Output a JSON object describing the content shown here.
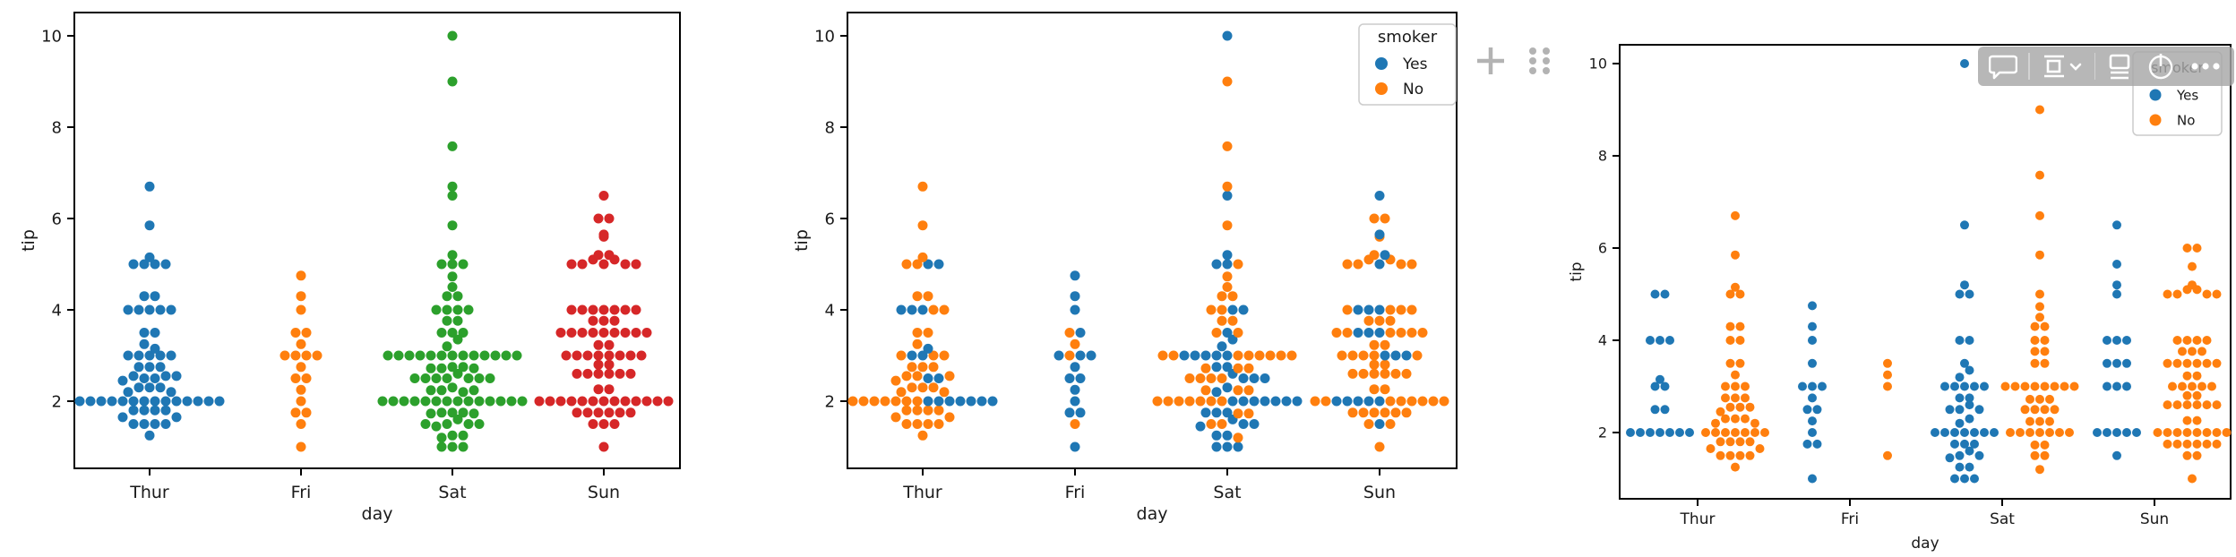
{
  "page": {
    "background": "#ffffff",
    "text_color": "#1a1a1a",
    "spine_color": "#000000"
  },
  "notebook_ui": {
    "add_cell_icon": "plus-icon",
    "drag_handle_icon": "drag-dots-icon",
    "cell_toolbar_icons": [
      "comment-icon",
      "output-presentation-icon",
      "chevron-down-icon",
      "insert-output-below-icon",
      "power-icon",
      "more-options-icon"
    ],
    "toolbar_bg": "#a7a7a7",
    "control_icon_color": "#b3b3b3",
    "toolbar_icon_color": "#ffffff"
  },
  "chart_data": {
    "type": "swarm",
    "dataset": {
      "columns": [
        "day",
        "tip",
        "smoker"
      ],
      "days": [
        "Thur",
        "Fri",
        "Sat",
        "Sun"
      ],
      "points": {
        "Thur": {
          "Yes": [
            5.0,
            5.0,
            4.0,
            4.0,
            4.0,
            3.15,
            3.0,
            3.0,
            2.5,
            2.5,
            2.0,
            2.0,
            2.0,
            2.0,
            2.0,
            2.0,
            2.0
          ],
          "No": [
            6.7,
            5.85,
            5.15,
            5.0,
            5.0,
            4.3,
            4.3,
            4.0,
            4.0,
            3.5,
            3.5,
            3.25,
            3.0,
            3.0,
            3.0,
            2.75,
            2.75,
            2.75,
            2.55,
            2.55,
            2.55,
            2.45,
            2.3,
            2.3,
            2.3,
            2.2,
            2.2,
            2.0,
            2.0,
            2.0,
            2.0,
            2.0,
            2.0,
            2.0,
            1.8,
            1.8,
            1.8,
            1.8,
            1.65,
            1.65,
            1.5,
            1.5,
            1.5,
            1.5,
            1.25
          ]
        },
        "Fri": {
          "Yes": [
            4.75,
            4.3,
            4.0,
            3.5,
            3.0,
            3.0,
            3.0,
            2.75,
            2.5,
            2.5,
            2.25,
            2.0,
            1.75,
            1.75,
            1.0
          ],
          "No": [
            3.5,
            3.25,
            3.0,
            1.5
          ]
        },
        "Sat": {
          "Yes": [
            10.0,
            6.5,
            5.2,
            5.0,
            5.0,
            4.0,
            4.0,
            3.5,
            3.35,
            3.2,
            3.0,
            3.0,
            3.0,
            3.0,
            3.0,
            2.75,
            2.75,
            2.6,
            2.5,
            2.5,
            2.5,
            2.3,
            2.2,
            2.0,
            2.0,
            2.0,
            2.0,
            2.0,
            2.0,
            2.0,
            1.75,
            1.75,
            1.75,
            1.6,
            1.5,
            1.5,
            1.45,
            1.25,
            1.25,
            1.0,
            1.0,
            1.0
          ],
          "No": [
            9.0,
            7.58,
            6.7,
            5.85,
            5.0,
            4.73,
            4.5,
            4.3,
            4.3,
            4.0,
            4.0,
            3.76,
            3.76,
            3.5,
            3.5,
            3.0,
            3.0,
            3.0,
            3.0,
            3.0,
            3.0,
            3.0,
            3.0,
            2.72,
            2.72,
            2.72,
            2.5,
            2.5,
            2.5,
            2.5,
            2.24,
            2.24,
            2.24,
            2.0,
            2.0,
            2.0,
            2.0,
            2.0,
            2.0,
            2.0,
            1.73,
            1.73,
            1.5,
            1.5,
            1.2
          ]
        },
        "Sun": {
          "Yes": [
            6.5,
            5.65,
            5.2,
            5.0,
            4.0,
            4.0,
            4.0,
            3.5,
            3.5,
            3.5,
            3.0,
            3.0,
            3.0,
            2.0,
            2.0,
            2.0,
            2.0,
            2.0,
            1.5
          ],
          "No": [
            6.0,
            6.0,
            5.6,
            5.2,
            5.1,
            5.1,
            5.0,
            5.0,
            5.0,
            5.0,
            4.0,
            4.0,
            4.0,
            4.0,
            3.76,
            3.76,
            3.76,
            3.5,
            3.5,
            3.5,
            3.5,
            3.5,
            3.5,
            3.23,
            3.23,
            3.0,
            3.0,
            3.0,
            3.0,
            3.0,
            2.8,
            2.8,
            2.6,
            2.6,
            2.6,
            2.6,
            2.6,
            2.6,
            2.26,
            2.26,
            2.0,
            2.0,
            2.0,
            2.0,
            2.0,
            2.0,
            2.0,
            2.0,
            1.75,
            1.75,
            1.75,
            1.75,
            1.75,
            1.75,
            1.5,
            1.5,
            1.0
          ]
        }
      }
    },
    "charts": [
      {
        "id": "swarm-by-day",
        "hue": "day",
        "dodge": false,
        "xlabel": "day",
        "ylabel": "tip",
        "categories": [
          "Thur",
          "Fri",
          "Sat",
          "Sun"
        ],
        "yticks": [
          2,
          4,
          6,
          8,
          10
        ],
        "ylim": [
          0.5,
          10.5
        ],
        "grid": false,
        "legend": null,
        "palette": {
          "Thur": "#1f77b4",
          "Fri": "#ff7f0e",
          "Sat": "#2ca02c",
          "Sun": "#d62728"
        }
      },
      {
        "id": "swarm-by-smoker",
        "hue": "smoker",
        "dodge": false,
        "xlabel": "day",
        "ylabel": "tip",
        "categories": [
          "Thur",
          "Fri",
          "Sat",
          "Sun"
        ],
        "yticks": [
          2,
          4,
          6,
          8,
          10
        ],
        "ylim": [
          0.5,
          10.5
        ],
        "grid": false,
        "legend": {
          "title": "smoker",
          "position": "upper right",
          "entries": [
            {
              "label": "Yes",
              "color": "#1f77b4"
            },
            {
              "label": "No",
              "color": "#ff7f0e"
            }
          ]
        },
        "palette": {
          "Yes": "#1f77b4",
          "No": "#ff7f0e"
        }
      },
      {
        "id": "swarm-by-smoker-dodged",
        "hue": "smoker",
        "dodge": true,
        "xlabel": "day",
        "ylabel": "tip",
        "categories": [
          "Thur",
          "Fri",
          "Sat",
          "Sun"
        ],
        "yticks": [
          2,
          4,
          6,
          8,
          10
        ],
        "ylim": [
          0.5,
          10.5
        ],
        "grid": false,
        "legend": {
          "title": "smoker",
          "position": "upper right",
          "entries": [
            {
              "label": "Yes",
              "color": "#1f77b4"
            },
            {
              "label": "No",
              "color": "#ff7f0e"
            }
          ]
        },
        "palette": {
          "Yes": "#1f77b4",
          "No": "#ff7f0e"
        }
      }
    ]
  }
}
